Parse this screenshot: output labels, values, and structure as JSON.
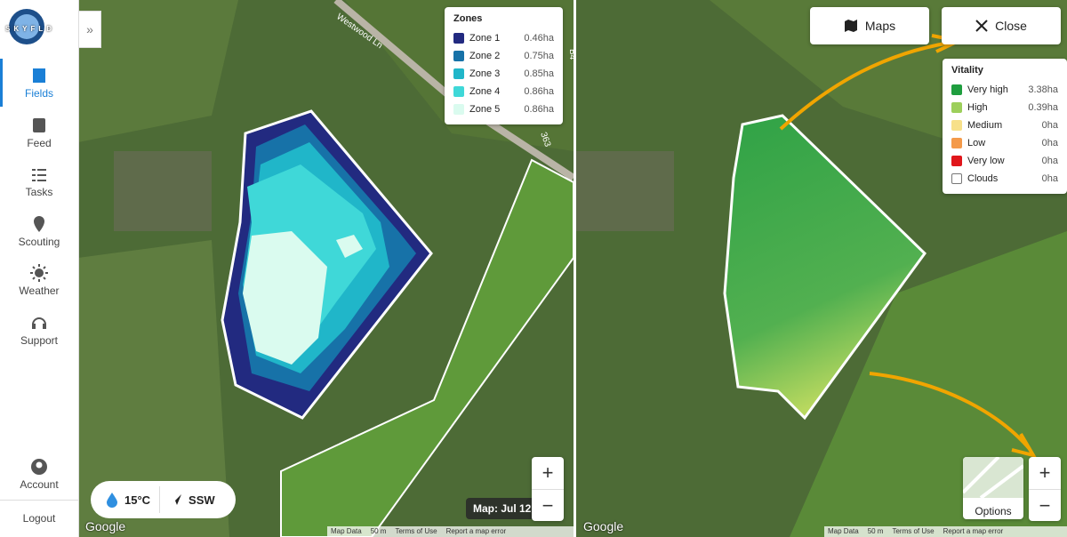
{
  "sidebar": {
    "logo": "SKYFLD",
    "nav": [
      "Fields",
      "Feed",
      "Tasks",
      "Scouting",
      "Weather",
      "Support"
    ],
    "account": "Account",
    "logout": "Logout"
  },
  "left_map": {
    "road_labels": [
      "Westwood Ln",
      "B4",
      "363"
    ],
    "zones_legend": {
      "title": "Zones",
      "items": [
        {
          "name": "Zone 1",
          "area": "0.46ha",
          "color": "#222a80"
        },
        {
          "name": "Zone 2",
          "area": "0.75ha",
          "color": "#1772a8"
        },
        {
          "name": "Zone 3",
          "area": "0.85ha",
          "color": "#20b6c9"
        },
        {
          "name": "Zone 4",
          "area": "0.86ha",
          "color": "#3fd8d8"
        },
        {
          "name": "Zone 5",
          "area": "0.86ha",
          "color": "#dafbef"
        }
      ]
    },
    "weather": {
      "temperature": "15°C",
      "wind": "SSW"
    },
    "date_label": "Map: Jul 12,",
    "zoom": {
      "in": "+",
      "out": "−"
    },
    "attribution": {
      "logo": "Google",
      "links": [
        "Map Data",
        "50 m",
        "Terms of Use",
        "Report a map error"
      ]
    }
  },
  "right_map": {
    "buttons": {
      "maps": "Maps",
      "close": "Close"
    },
    "vitality_legend": {
      "title": "Vitality",
      "items": [
        {
          "name": "Very high",
          "area": "3.38ha",
          "color": "#1f9e3f"
        },
        {
          "name": "High",
          "area": "0.39ha",
          "color": "#9dcf5b"
        },
        {
          "name": "Medium",
          "area": "0ha",
          "color": "#f7e08a"
        },
        {
          "name": "Low",
          "area": "0ha",
          "color": "#f49a4a"
        },
        {
          "name": "Very low",
          "area": "0ha",
          "color": "#e0161b"
        },
        {
          "name": "Clouds",
          "area": "0ha",
          "color": "#ffffff"
        }
      ]
    },
    "options": "Options",
    "zoom": {
      "in": "+",
      "out": "−"
    },
    "attribution": {
      "logo": "Google",
      "links": [
        "Map Data",
        "50 m",
        "Terms of Use",
        "Report a map error"
      ]
    }
  }
}
